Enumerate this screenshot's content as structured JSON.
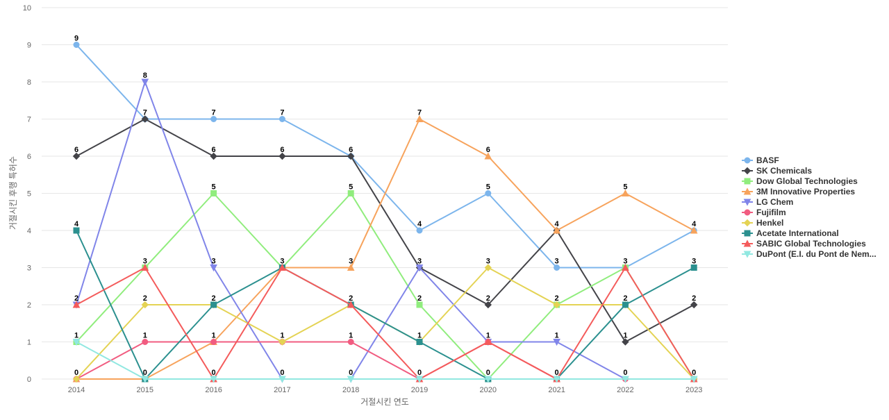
{
  "chart_data": {
    "type": "line",
    "title": "",
    "xlabel": "거절시킨 연도",
    "ylabel": "거절시킨 후행 특허수",
    "x": [
      "2014",
      "2015",
      "2016",
      "2017",
      "2018",
      "2019",
      "2020",
      "2021",
      "2022",
      "2023"
    ],
    "ylim": [
      0,
      10
    ],
    "yticks": [
      0,
      1,
      2,
      3,
      4,
      5,
      6,
      7,
      8,
      9,
      10
    ],
    "grid": true,
    "legend_position": "right",
    "series": [
      {
        "name": "BASF",
        "color": "#7cb5ec",
        "marker": "circle",
        "values": [
          9,
          7,
          7,
          7,
          6,
          4,
          5,
          3,
          3,
          4
        ]
      },
      {
        "name": "SK Chemicals",
        "color": "#434348",
        "marker": "diamond",
        "values": [
          6,
          7,
          6,
          6,
          6,
          3,
          2,
          4,
          1,
          2
        ]
      },
      {
        "name": "Dow Global Technologies",
        "color": "#90ed7d",
        "marker": "square",
        "values": [
          1,
          3,
          5,
          3,
          5,
          2,
          0,
          2,
          3,
          0
        ]
      },
      {
        "name": "3M Innovative Properties",
        "color": "#f7a35c",
        "marker": "triangle",
        "values": [
          0,
          0,
          1,
          3,
          3,
          7,
          6,
          4,
          5,
          4
        ]
      },
      {
        "name": "LG Chem",
        "color": "#8085e9",
        "marker": "triangle-down",
        "values": [
          2,
          8,
          3,
          0,
          0,
          3,
          1,
          1,
          0,
          0
        ]
      },
      {
        "name": "Fujifilm",
        "color": "#f15c80",
        "marker": "circle",
        "values": [
          0,
          1,
          1,
          1,
          1,
          0,
          1,
          0,
          0,
          0
        ]
      },
      {
        "name": "Henkel",
        "color": "#e4d354",
        "marker": "diamond",
        "values": [
          0,
          2,
          2,
          1,
          2,
          1,
          3,
          2,
          2,
          0
        ]
      },
      {
        "name": "Acetate International",
        "color": "#2b908f",
        "marker": "square",
        "values": [
          4,
          0,
          2,
          3,
          2,
          1,
          0,
          0,
          2,
          3
        ]
      },
      {
        "name": "SABIC Global Technologies",
        "color": "#f45b5b",
        "marker": "triangle",
        "values": [
          2,
          3,
          0,
          3,
          2,
          0,
          1,
          0,
          3,
          0
        ]
      },
      {
        "name": "DuPont (E.I. du Pont de Nem...",
        "color": "#91e8e1",
        "marker": "triangle-down",
        "values": [
          1,
          0,
          0,
          0,
          0,
          0,
          0,
          0,
          0,
          0
        ]
      }
    ],
    "data_labels": [
      9,
      7,
      7,
      7,
      6,
      4,
      5,
      4,
      5,
      4
    ]
  }
}
